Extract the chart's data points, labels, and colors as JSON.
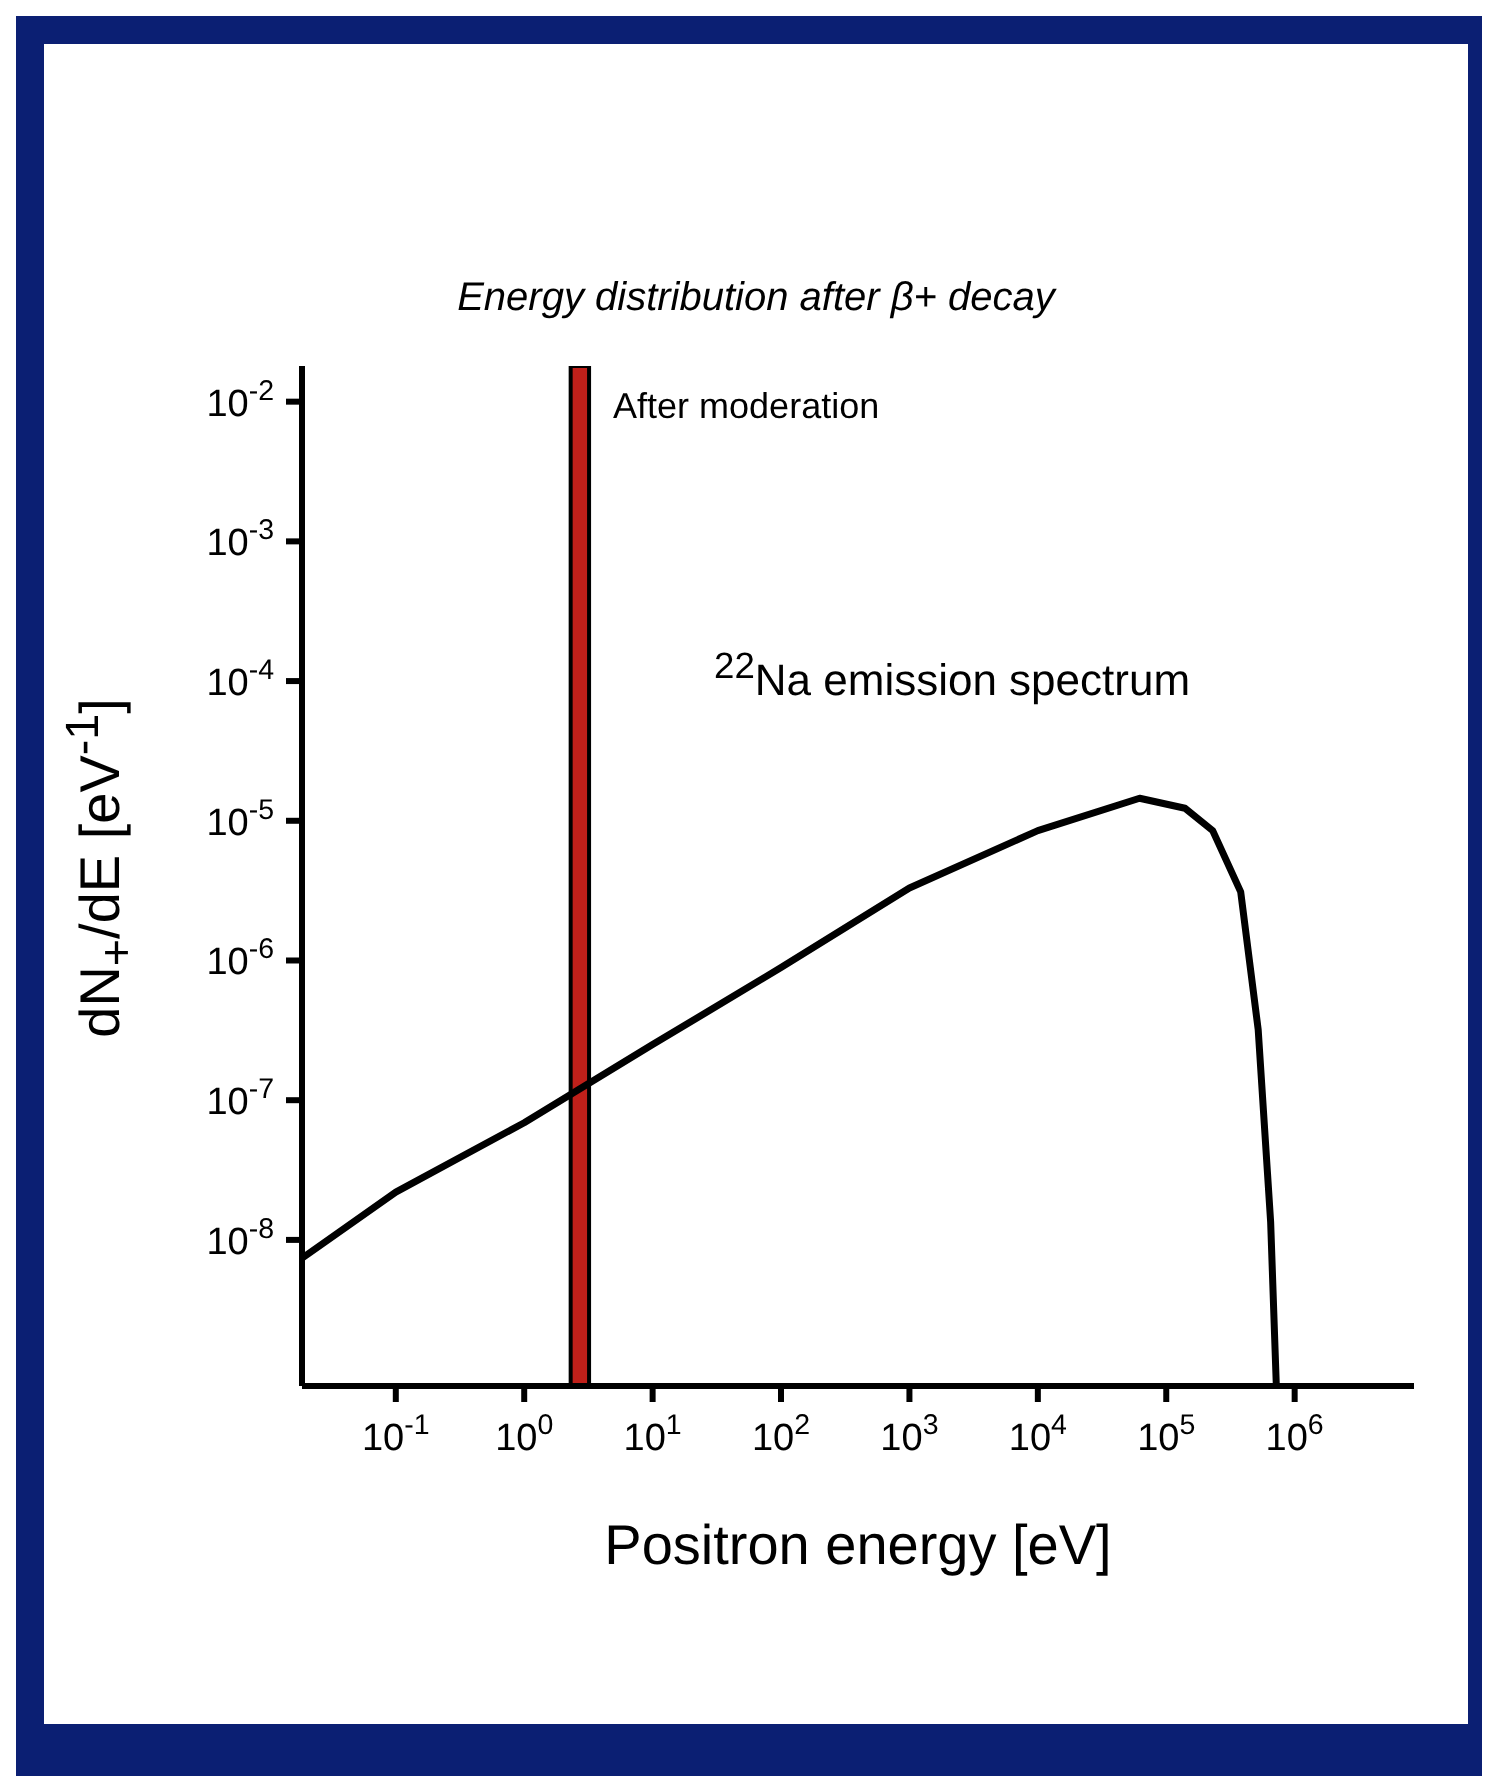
{
  "chart_data": {
    "type": "line",
    "title": "Energy distribution after β+ decay",
    "xlabel": "Positron energy [eV]",
    "ylabel": "dN$_{+}$/dE [eV$^{-1}$]",
    "log": "xy",
    "xlim": [
      0.0186,
      8500000
    ],
    "ylim": [
      9e-10,
      0.018
    ],
    "xticks": [
      {
        "value": 0.1,
        "label": "10$^{-1}$"
      },
      {
        "value": 1,
        "label": "10$^{0}$"
      },
      {
        "value": 10,
        "label": "10$^{1}$"
      },
      {
        "value": 100,
        "label": "10$^{2}$"
      },
      {
        "value": 1000,
        "label": "10$^{3}$"
      },
      {
        "value": 10000,
        "label": "10$^{4}$"
      },
      {
        "value": 100000,
        "label": "10$^{5}$"
      },
      {
        "value": 1000000,
        "label": "10$^{6}$"
      }
    ],
    "yticks": [
      {
        "value": 1e-08,
        "label": "10$^{-8}$"
      },
      {
        "value": 1e-07,
        "label": "10$^{-7}$"
      },
      {
        "value": 1e-06,
        "label": "10$^{-6}$"
      },
      {
        "value": 1e-05,
        "label": "10$^{-5}$"
      },
      {
        "value": 0.0001,
        "label": "10$^{-4}$"
      },
      {
        "value": 0.001,
        "label": "10$^{-3}$"
      },
      {
        "value": 0.01,
        "label": "10$^{-2}$"
      }
    ],
    "series": [
      {
        "color": "#000000",
        "x": [
          0.0186,
          0.1,
          1,
          10,
          100,
          1000,
          10000,
          62000,
          140000,
          230000,
          380000,
          520000,
          650000,
          720000
        ],
        "values": [
          7.4e-09,
          2.2e-08,
          6.9e-08,
          2.5e-07,
          8.9e-07,
          3.3e-06,
          8.5e-06,
          1.45e-05,
          1.23e-05,
          8.5e-06,
          3.1e-06,
          3.2e-07,
          1.35e-08,
          9e-10
        ]
      }
    ],
    "bands": [
      {
        "axis": "x",
        "from": 2.3,
        "to": 3.2,
        "label": "After moderation",
        "color": "#c0201a"
      }
    ],
    "annotations": [
      "$^{22}$Na emission spectrum"
    ]
  }
}
